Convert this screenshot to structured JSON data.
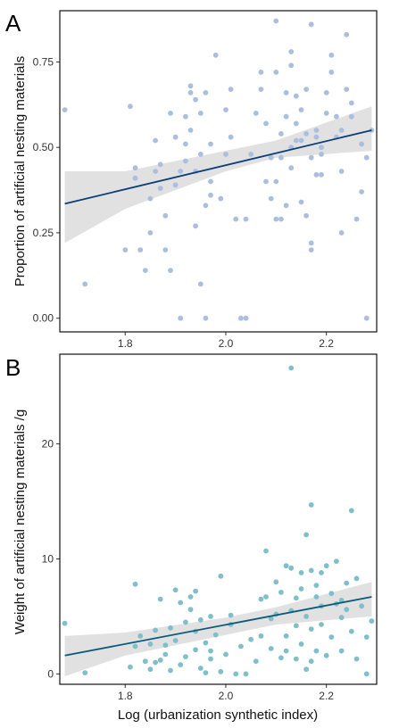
{
  "chart_data": [
    {
      "type": "scatter",
      "panel_label": "A",
      "xlabel": "",
      "ylabel": "Proportion of artificial nesting materials",
      "xlim": [
        1.67,
        2.3
      ],
      "ylim": [
        -0.04,
        0.9
      ],
      "xticks": [
        1.8,
        2.0,
        2.2
      ],
      "xtick_labels": [
        "1.8",
        "2.0",
        "2.2"
      ],
      "yticks": [
        0.0,
        0.25,
        0.5,
        0.75
      ],
      "ytick_labels": [
        "0.00",
        "0.25",
        "0.50",
        "0.75"
      ],
      "grid": false,
      "point_color": "#a9bfdd",
      "line_color": "#0b3d7a",
      "band_color": "#dcdcdc",
      "fit": {
        "x": [
          1.68,
          2.29
        ],
        "y": [
          0.335,
          0.55
        ]
      },
      "ci": {
        "x": [
          1.68,
          1.8,
          2.0,
          2.1,
          2.29
        ],
        "lower": [
          0.22,
          0.32,
          0.43,
          0.47,
          0.49
        ],
        "upper": [
          0.43,
          0.43,
          0.49,
          0.52,
          0.62
        ]
      },
      "points": [
        [
          1.68,
          0.61
        ],
        [
          1.72,
          0.1
        ],
        [
          1.8,
          0.2
        ],
        [
          1.81,
          0.62
        ],
        [
          1.82,
          0.41
        ],
        [
          1.82,
          0.44
        ],
        [
          1.83,
          0.2
        ],
        [
          1.84,
          0.14
        ],
        [
          1.85,
          0.25
        ],
        [
          1.85,
          0.35
        ],
        [
          1.86,
          0.43
        ],
        [
          1.86,
          0.52
        ],
        [
          1.87,
          0.45
        ],
        [
          1.87,
          0.38
        ],
        [
          1.88,
          0.3
        ],
        [
          1.88,
          0.2
        ],
        [
          1.89,
          0.14
        ],
        [
          1.89,
          0.6
        ],
        [
          1.9,
          0.39
        ],
        [
          1.9,
          0.53
        ],
        [
          1.91,
          0.0
        ],
        [
          1.91,
          0.43
        ],
        [
          1.92,
          0.51
        ],
        [
          1.92,
          0.59
        ],
        [
          1.92,
          0.46
        ],
        [
          1.93,
          0.55
        ],
        [
          1.93,
          0.66
        ],
        [
          1.93,
          0.68
        ],
        [
          1.94,
          0.64
        ],
        [
          1.94,
          0.27
        ],
        [
          1.94,
          0.43
        ],
        [
          1.95,
          0.1
        ],
        [
          1.95,
          0.48
        ],
        [
          1.95,
          0.6
        ],
        [
          1.96,
          0.0
        ],
        [
          1.96,
          0.33
        ],
        [
          1.96,
          0.66
        ],
        [
          1.97,
          0.36
        ],
        [
          1.97,
          0.4
        ],
        [
          1.97,
          0.51
        ],
        [
          1.98,
          0.77
        ],
        [
          1.99,
          0.35
        ],
        [
          2.0,
          0.48
        ],
        [
          2.0,
          0.61
        ],
        [
          2.01,
          0.53
        ],
        [
          2.01,
          0.67
        ],
        [
          2.02,
          0.29
        ],
        [
          2.03,
          0.0
        ],
        [
          2.04,
          0.0
        ],
        [
          2.04,
          0.29
        ],
        [
          2.05,
          0.48
        ],
        [
          2.06,
          0.6
        ],
        [
          2.07,
          0.67
        ],
        [
          2.07,
          0.72
        ],
        [
          2.08,
          0.4
        ],
        [
          2.08,
          0.57
        ],
        [
          2.09,
          0.35
        ],
        [
          2.09,
          0.47
        ],
        [
          2.1,
          0.29
        ],
        [
          2.1,
          0.4
        ],
        [
          2.1,
          0.72
        ],
        [
          2.1,
          0.87
        ],
        [
          2.11,
          0.47
        ],
        [
          2.11,
          0.54
        ],
        [
          2.11,
          0.29
        ],
        [
          2.12,
          0.33
        ],
        [
          2.12,
          0.59
        ],
        [
          2.12,
          0.66
        ],
        [
          2.13,
          0.5
        ],
        [
          2.13,
          0.78
        ],
        [
          2.13,
          0.74
        ],
        [
          2.13,
          0.44
        ],
        [
          2.14,
          0.52
        ],
        [
          2.14,
          0.57
        ],
        [
          2.14,
          0.65
        ],
        [
          2.15,
          0.52
        ],
        [
          2.15,
          0.61
        ],
        [
          2.15,
          0.34
        ],
        [
          2.16,
          0.54
        ],
        [
          2.16,
          0.67
        ],
        [
          2.16,
          0.3
        ],
        [
          2.17,
          0.2
        ],
        [
          2.17,
          0.22
        ],
        [
          2.17,
          0.86
        ],
        [
          2.17,
          0.47
        ],
        [
          2.18,
          0.42
        ],
        [
          2.18,
          0.53
        ],
        [
          2.18,
          0.55
        ],
        [
          2.19,
          0.48
        ],
        [
          2.19,
          0.42
        ],
        [
          2.19,
          0.5
        ],
        [
          2.2,
          0.6
        ],
        [
          2.2,
          0.66
        ],
        [
          2.21,
          0.72
        ],
        [
          2.21,
          0.77
        ],
        [
          2.22,
          0.53
        ],
        [
          2.22,
          0.59
        ],
        [
          2.23,
          0.25
        ],
        [
          2.23,
          0.43
        ],
        [
          2.23,
          0.55
        ],
        [
          2.24,
          0.83
        ],
        [
          2.24,
          0.67
        ],
        [
          2.25,
          0.63
        ],
        [
          2.25,
          0.59
        ],
        [
          2.26,
          0.29
        ],
        [
          2.27,
          0.37
        ],
        [
          2.27,
          0.51
        ],
        [
          2.28,
          0.0
        ],
        [
          2.29,
          0.55
        ],
        [
          2.28,
          0.47
        ]
      ]
    },
    {
      "type": "scatter",
      "panel_label": "B",
      "xlabel": "Log (urbanization synthetic index)",
      "ylabel": "Weight of artificial nesting materials /g",
      "xlim": [
        1.67,
        2.3
      ],
      "ylim": [
        -0.9,
        27.8
      ],
      "xticks": [
        1.8,
        2.0,
        2.2
      ],
      "xtick_labels": [
        "1.8",
        "2.0",
        "2.2"
      ],
      "yticks": [
        0,
        10,
        20
      ],
      "ytick_labels": [
        "0",
        "10",
        "20"
      ],
      "grid": false,
      "point_color": "#7ebfc9",
      "line_color": "#0a5a7a",
      "band_color": "#dcdcdc",
      "fit": {
        "x": [
          1.68,
          2.29
        ],
        "y": [
          1.6,
          6.7
        ]
      },
      "ci": {
        "x": [
          1.68,
          1.8,
          2.0,
          2.1,
          2.29
        ],
        "lower": [
          -0.2,
          1.6,
          3.4,
          4.3,
          5.0
        ],
        "upper": [
          3.3,
          3.6,
          4.9,
          5.8,
          8.0
        ]
      },
      "points": [
        [
          1.68,
          4.4
        ],
        [
          1.72,
          0.1
        ],
        [
          1.81,
          0.6
        ],
        [
          1.82,
          7.8
        ],
        [
          1.82,
          2.4
        ],
        [
          1.83,
          3.3
        ],
        [
          1.84,
          1.1
        ],
        [
          1.85,
          0.4
        ],
        [
          1.85,
          2.6
        ],
        [
          1.86,
          1.0
        ],
        [
          1.86,
          3.8
        ],
        [
          1.87,
          6.5
        ],
        [
          1.87,
          1.2
        ],
        [
          1.88,
          1.7
        ],
        [
          1.88,
          2.5
        ],
        [
          1.89,
          0.3
        ],
        [
          1.89,
          4.0
        ],
        [
          1.9,
          7.3
        ],
        [
          1.9,
          2.9
        ],
        [
          1.91,
          6.2
        ],
        [
          1.91,
          0.8
        ],
        [
          1.92,
          4.5
        ],
        [
          1.92,
          1.5
        ],
        [
          1.93,
          5.6
        ],
        [
          1.93,
          6.7
        ],
        [
          1.94,
          7.2
        ],
        [
          1.94,
          3.7
        ],
        [
          1.94,
          2.1
        ],
        [
          1.95,
          0.5
        ],
        [
          1.95,
          4.7
        ],
        [
          1.96,
          0.1
        ],
        [
          1.96,
          2.7
        ],
        [
          1.97,
          1.3
        ],
        [
          1.97,
          5.0
        ],
        [
          1.97,
          2.0
        ],
        [
          1.98,
          3.4
        ],
        [
          1.99,
          0.2
        ],
        [
          1.99,
          8.5
        ],
        [
          2.0,
          1.7
        ],
        [
          2.01,
          5.1
        ],
        [
          2.01,
          4.3
        ],
        [
          2.02,
          0.0
        ],
        [
          2.03,
          2.4
        ],
        [
          2.04,
          0.0
        ],
        [
          2.05,
          3.0
        ],
        [
          2.06,
          1.1
        ],
        [
          2.07,
          6.5
        ],
        [
          2.07,
          3.3
        ],
        [
          2.08,
          10.7
        ],
        [
          2.08,
          6.7
        ],
        [
          2.09,
          2.2
        ],
        [
          2.09,
          4.8
        ],
        [
          2.1,
          8.0
        ],
        [
          2.1,
          5.2
        ],
        [
          2.11,
          1.4
        ],
        [
          2.11,
          7.1
        ],
        [
          2.12,
          3.3
        ],
        [
          2.12,
          9.4
        ],
        [
          2.12,
          2.0
        ],
        [
          2.13,
          26.6
        ],
        [
          2.13,
          9.2
        ],
        [
          2.13,
          5.5
        ],
        [
          2.14,
          1.3
        ],
        [
          2.14,
          4.2
        ],
        [
          2.14,
          6.6
        ],
        [
          2.15,
          8.8
        ],
        [
          2.15,
          2.6
        ],
        [
          2.15,
          7.4
        ],
        [
          2.16,
          12.1
        ],
        [
          2.16,
          5.0
        ],
        [
          2.16,
          0.4
        ],
        [
          2.17,
          14.7
        ],
        [
          2.17,
          9.0
        ],
        [
          2.17,
          1.1
        ],
        [
          2.17,
          3.9
        ],
        [
          2.18,
          6.7
        ],
        [
          2.18,
          7.7
        ],
        [
          2.18,
          2.0
        ],
        [
          2.19,
          4.3
        ],
        [
          2.19,
          8.8
        ],
        [
          2.19,
          5.9
        ],
        [
          2.2,
          1.6
        ],
        [
          2.2,
          9.4
        ],
        [
          2.21,
          3.2
        ],
        [
          2.21,
          7.0
        ],
        [
          2.22,
          9.8
        ],
        [
          2.22,
          6.1
        ],
        [
          2.23,
          2.0
        ],
        [
          2.23,
          4.9
        ],
        [
          2.24,
          7.9
        ],
        [
          2.24,
          5.6
        ],
        [
          2.25,
          14.2
        ],
        [
          2.25,
          3.7
        ],
        [
          2.26,
          8.3
        ],
        [
          2.26,
          1.3
        ],
        [
          2.27,
          5.9
        ],
        [
          2.28,
          3.2
        ],
        [
          2.28,
          0.0
        ],
        [
          2.29,
          4.6
        ],
        [
          2.23,
          6.4
        ]
      ]
    }
  ]
}
